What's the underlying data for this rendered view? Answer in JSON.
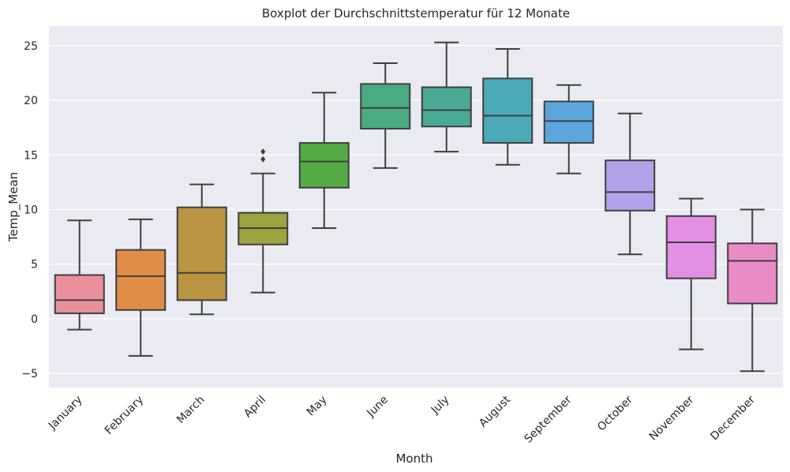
{
  "chart_data": {
    "type": "boxplot",
    "title": "Boxplot der Durchschnittstemperatur für 12 Monate",
    "xlabel": "Month",
    "ylabel": "Temp_Mean",
    "ylim": [
      -6.3,
      26.8
    ],
    "yticks": [
      "−5",
      "0",
      "5",
      "10",
      "15",
      "20",
      "25"
    ],
    "ytick_values": [
      -5,
      0,
      5,
      10,
      15,
      20,
      25
    ],
    "grid": true,
    "categories": [
      "January",
      "February",
      "March",
      "April",
      "May",
      "June",
      "July",
      "August",
      "September",
      "October",
      "November",
      "December"
    ],
    "boxes": [
      {
        "name": "January",
        "whisker_low": -1.0,
        "q1": 0.5,
        "median": 1.7,
        "q3": 4.0,
        "whisker_high": 9.0,
        "outliers": [],
        "color": "#e8919a"
      },
      {
        "name": "February",
        "whisker_low": -3.4,
        "q1": 0.8,
        "median": 3.9,
        "q3": 6.3,
        "whisker_high": 9.1,
        "outliers": [],
        "color": "#e08d47"
      },
      {
        "name": "March",
        "whisker_low": 0.4,
        "q1": 1.7,
        "median": 4.2,
        "q3": 10.2,
        "whisker_high": 12.3,
        "outliers": [],
        "color": "#b89443"
      },
      {
        "name": "April",
        "whisker_low": 2.4,
        "q1": 6.8,
        "median": 8.3,
        "q3": 9.7,
        "whisker_high": 13.3,
        "outliers": [
          14.6,
          15.3
        ],
        "color": "#9ca33f"
      },
      {
        "name": "May",
        "whisker_low": 8.3,
        "q1": 12.0,
        "median": 14.4,
        "q3": 16.1,
        "whisker_high": 20.7,
        "outliers": [],
        "color": "#55ab45"
      },
      {
        "name": "June",
        "whisker_low": 13.8,
        "q1": 17.4,
        "median": 19.3,
        "q3": 21.5,
        "whisker_high": 23.4,
        "outliers": [],
        "color": "#4aab80"
      },
      {
        "name": "July",
        "whisker_low": 15.3,
        "q1": 17.6,
        "median": 19.1,
        "q3": 21.2,
        "whisker_high": 25.3,
        "outliers": [],
        "color": "#4aa996"
      },
      {
        "name": "August",
        "whisker_low": 14.1,
        "q1": 16.1,
        "median": 18.6,
        "q3": 22.0,
        "whisker_high": 24.7,
        "outliers": [],
        "color": "#4ca9b7"
      },
      {
        "name": "September",
        "whisker_low": 13.3,
        "q1": 16.1,
        "median": 18.1,
        "q3": 19.9,
        "whisker_high": 21.4,
        "outliers": [],
        "color": "#5ba6dc"
      },
      {
        "name": "October",
        "whisker_low": 5.9,
        "q1": 9.9,
        "median": 11.6,
        "q3": 14.5,
        "whisker_high": 18.8,
        "outliers": [],
        "color": "#b3a2ea"
      },
      {
        "name": "November",
        "whisker_low": -2.8,
        "q1": 3.7,
        "median": 7.0,
        "q3": 9.4,
        "whisker_high": 11.0,
        "outliers": [],
        "color": "#e38fe3"
      },
      {
        "name": "December",
        "whisker_low": -4.8,
        "q1": 1.4,
        "median": 5.3,
        "q3": 6.9,
        "whisker_high": 10.0,
        "outliers": [],
        "color": "#e98cc6"
      }
    ]
  }
}
